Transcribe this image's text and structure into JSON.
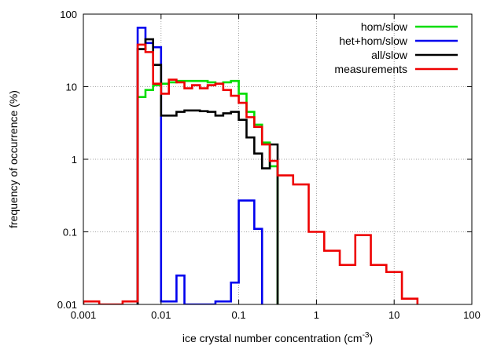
{
  "chart_data": {
    "type": "line",
    "step": true,
    "xscale": "log",
    "yscale": "log",
    "xlim": [
      0.001,
      100
    ],
    "ylim": [
      0.01,
      100
    ],
    "grid": true,
    "legend_position": "top-right",
    "xlabel": "ice crystal number concentration (cm",
    "xlabel_sup": "-3",
    "xlabel_tail": ")",
    "ylabel": "frequency of occurrence (%)",
    "x_ticks": [
      {
        "value": 0.001,
        "label": "0.001"
      },
      {
        "value": 0.01,
        "label": "0.01"
      },
      {
        "value": 0.1,
        "label": "0.1"
      },
      {
        "value": 1,
        "label": "1"
      },
      {
        "value": 10,
        "label": "10"
      },
      {
        "value": 100,
        "label": "100"
      }
    ],
    "y_ticks": [
      {
        "value": 0.01,
        "label": "0.01"
      },
      {
        "value": 0.1,
        "label": "0.1"
      },
      {
        "value": 1,
        "label": "1"
      },
      {
        "value": 10,
        "label": "10"
      },
      {
        "value": 100,
        "label": "100"
      }
    ],
    "series": [
      {
        "name": "hom/slow",
        "color": "#00dd00",
        "x": [
          0.005,
          0.005,
          0.0063,
          0.0063,
          0.0079,
          0.0079,
          0.01,
          0.01,
          0.0126,
          0.0126,
          0.0158,
          0.0158,
          0.02,
          0.02,
          0.0251,
          0.0251,
          0.0316,
          0.0316,
          0.0398,
          0.0398,
          0.0501,
          0.0501,
          0.0631,
          0.0631,
          0.0794,
          0.0794,
          0.1,
          0.1,
          0.1259,
          0.1259,
          0.1585,
          0.1585,
          0.1995,
          0.1995,
          0.2512,
          0.2512,
          0.3162,
          0.3162
        ],
        "y": [
          0.01,
          7.2,
          7.2,
          9.0,
          9.0,
          10.5,
          10.5,
          11.0,
          11.0,
          11.5,
          11.5,
          12.0,
          12.0,
          12.0,
          12.0,
          12.0,
          12.0,
          12.0,
          12.0,
          11.5,
          11.5,
          11.0,
          11.0,
          11.5,
          11.5,
          12.0,
          12.0,
          8.0,
          8.0,
          4.5,
          4.5,
          3.0,
          3.0,
          1.7,
          1.7,
          0.8,
          0.8,
          0.01
        ]
      },
      {
        "name": "het+hom/slow",
        "color": "#0000ee",
        "x": [
          0.005,
          0.005,
          0.0063,
          0.0063,
          0.0079,
          0.0079,
          0.01,
          0.01,
          0.0126,
          0.0126,
          0.0158,
          0.0158,
          0.02,
          0.02,
          0.0251,
          0.0251,
          0.0501,
          0.0501,
          0.0631,
          0.0631,
          0.0794,
          0.0794,
          0.1,
          0.1,
          0.1259,
          0.1259,
          0.1585,
          0.1585,
          0.1995,
          0.1995
        ],
        "y": [
          0.01,
          65,
          65,
          40,
          40,
          35,
          35,
          0.011,
          0.011,
          0.011,
          0.011,
          0.025,
          0.025,
          0.01,
          0.01,
          0.01,
          0.01,
          0.011,
          0.011,
          0.011,
          0.011,
          0.02,
          0.02,
          0.27,
          0.27,
          0.27,
          0.27,
          0.11,
          0.11,
          0.01
        ]
      },
      {
        "name": "all/slow",
        "color": "#000000",
        "x": [
          0.005,
          0.005,
          0.0063,
          0.0063,
          0.0079,
          0.0079,
          0.01,
          0.01,
          0.0126,
          0.0126,
          0.0158,
          0.0158,
          0.02,
          0.02,
          0.0251,
          0.0251,
          0.0316,
          0.0316,
          0.0398,
          0.0398,
          0.0501,
          0.0501,
          0.0631,
          0.0631,
          0.0794,
          0.0794,
          0.1,
          0.1,
          0.1259,
          0.1259,
          0.1585,
          0.1585,
          0.1995,
          0.1995,
          0.2512,
          0.2512,
          0.3162,
          0.3162
        ],
        "y": [
          0.01,
          33,
          33,
          45,
          45,
          20,
          20,
          4.0,
          4.0,
          4.0,
          4.0,
          4.5,
          4.5,
          4.7,
          4.7,
          4.7,
          4.7,
          4.6,
          4.6,
          4.5,
          4.5,
          4.0,
          4.0,
          4.3,
          4.3,
          4.5,
          4.5,
          3.5,
          3.5,
          2.0,
          2.0,
          1.2,
          1.2,
          0.75,
          0.75,
          1.6,
          1.6,
          0.01
        ]
      },
      {
        "name": "measurements",
        "color": "#ee0000",
        "x": [
          0.001,
          0.001,
          0.0016,
          0.0016,
          0.0032,
          0.0032,
          0.005,
          0.005,
          0.0063,
          0.0063,
          0.0079,
          0.0079,
          0.01,
          0.01,
          0.0126,
          0.0126,
          0.0158,
          0.0158,
          0.02,
          0.02,
          0.0251,
          0.0251,
          0.0316,
          0.0316,
          0.0398,
          0.0398,
          0.0501,
          0.0501,
          0.0631,
          0.0631,
          0.0794,
          0.0794,
          0.1,
          0.1,
          0.1259,
          0.1259,
          0.1585,
          0.1585,
          0.1995,
          0.1995,
          0.2512,
          0.2512,
          0.3162,
          0.3162,
          0.5012,
          0.5012,
          0.7943,
          0.7943,
          1.2589,
          1.2589,
          1.9953,
          1.9953,
          3.1623,
          3.1623,
          5.0119,
          5.0119,
          7.9433,
          7.9433,
          12.5893,
          12.5893,
          19.9526,
          19.9526
        ],
        "y": [
          0.01,
          0.011,
          0.011,
          0.01,
          0.01,
          0.011,
          0.011,
          38,
          38,
          30,
          30,
          11,
          11,
          8.0,
          8.0,
          12.5,
          12.5,
          11.5,
          11.5,
          9.5,
          9.5,
          10.5,
          10.5,
          9.5,
          9.5,
          10.5,
          10.5,
          11.0,
          11.0,
          9.0,
          9.0,
          7.5,
          7.5,
          6.0,
          6.0,
          3.8,
          3.8,
          2.8,
          2.8,
          1.6,
          1.6,
          0.95,
          0.95,
          0.6,
          0.6,
          0.45,
          0.45,
          0.1,
          0.1,
          0.055,
          0.055,
          0.035,
          0.035,
          0.09,
          0.09,
          0.035,
          0.035,
          0.028,
          0.028,
          0.012,
          0.012,
          0.01
        ]
      }
    ]
  }
}
